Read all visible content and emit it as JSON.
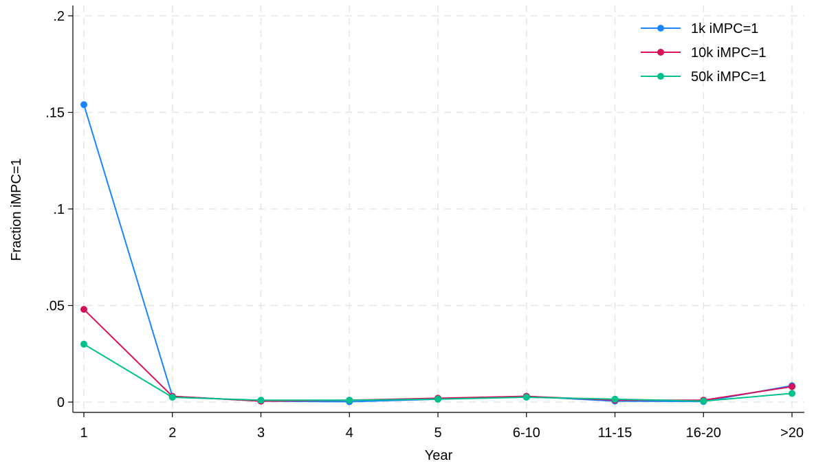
{
  "chart_data": {
    "type": "line",
    "title": "",
    "xlabel": "Year",
    "ylabel": "Fraction iMPC=1",
    "categories": [
      "1",
      "2",
      "3",
      "4",
      "5",
      "6-10",
      "11-15",
      "16-20",
      ">20"
    ],
    "ylim": [
      0,
      0.2
    ],
    "yticks": [
      0,
      0.05,
      0.1,
      0.15,
      0.2
    ],
    "ytick_labels": [
      "0",
      ".05",
      ".1",
      ".15",
      ".2"
    ],
    "grid": true,
    "legend_position": "top-right",
    "series": [
      {
        "name": "1k iMPC=1",
        "color": "#1a85ff",
        "values": [
          0.154,
          0.003,
          0.0005,
          0.0002,
          0.0015,
          0.003,
          0.0005,
          0.0003,
          0.0085
        ]
      },
      {
        "name": "10k iMPC=1",
        "color": "#d41159",
        "values": [
          0.048,
          0.003,
          0.0005,
          0.001,
          0.002,
          0.003,
          0.001,
          0.001,
          0.008
        ]
      },
      {
        "name": "50k iMPC=1",
        "color": "#00c08b",
        "values": [
          0.03,
          0.0025,
          0.001,
          0.001,
          0.0015,
          0.0025,
          0.0015,
          0.0005,
          0.0045
        ]
      }
    ]
  }
}
